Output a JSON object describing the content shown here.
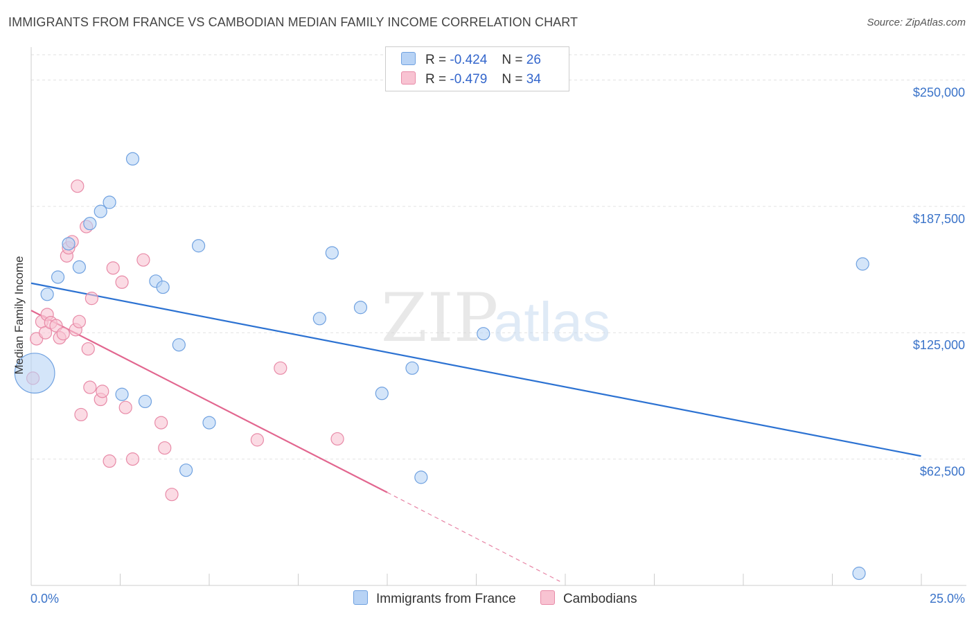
{
  "title": "IMMIGRANTS FROM FRANCE VS CAMBODIAN MEDIAN FAMILY INCOME CORRELATION CHART",
  "source": "Source: ZipAtlas.com",
  "watermark": {
    "zip": "ZIP",
    "atlas": "atlas"
  },
  "legend": {
    "rows": [
      {
        "r_label": "R =",
        "r_value": "-0.424",
        "n_label": "N =",
        "n_value": "26"
      },
      {
        "r_label": "R =",
        "r_value": "-0.479",
        "n_label": "N =",
        "n_value": "34"
      }
    ]
  },
  "colors": {
    "blue_fill": "#b8d3f5",
    "blue_stroke": "#6fa1e0",
    "blue_line": "#2c72d2",
    "pink_fill": "#f8c3d2",
    "pink_stroke": "#e88aa7",
    "pink_line": "#e2668f",
    "axis_label": "#3a73c9"
  },
  "chart_data": {
    "type": "scatter",
    "title": "IMMIGRANTS FROM FRANCE VS CAMBODIAN MEDIAN FAMILY INCOME CORRELATION CHART",
    "xlabel": "",
    "ylabel": "Median Family Income",
    "xlim": [
      0,
      25
    ],
    "ylim": [
      0,
      262500
    ],
    "x_tick_labels": [
      "0.0%",
      "25.0%"
    ],
    "y_ticks": [
      62500,
      125000,
      187500,
      250000
    ],
    "y_tick_labels": [
      "$62,500",
      "$125,000",
      "$187,500",
      "$250,000"
    ],
    "grid": true,
    "legend_position": "top-center",
    "series": [
      {
        "name": "Immigrants from France",
        "color": "#6fa1e0",
        "r": -0.424,
        "n": 26,
        "trend": {
          "x": [
            0,
            24.99
          ],
          "y": [
            149500,
            64000
          ]
        },
        "points": [
          {
            "x": 0.1,
            "y": 105000,
            "size": 3.2
          },
          {
            "x": 0.45,
            "y": 144000
          },
          {
            "x": 0.75,
            "y": 152500
          },
          {
            "x": 1.05,
            "y": 169000
          },
          {
            "x": 1.35,
            "y": 157500
          },
          {
            "x": 1.65,
            "y": 179000
          },
          {
            "x": 1.95,
            "y": 185000
          },
          {
            "x": 2.2,
            "y": 189500
          },
          {
            "x": 2.55,
            "y": 94500
          },
          {
            "x": 2.85,
            "y": 211000
          },
          {
            "x": 3.2,
            "y": 91000
          },
          {
            "x": 3.5,
            "y": 150500
          },
          {
            "x": 3.7,
            "y": 147500
          },
          {
            "x": 4.15,
            "y": 119000
          },
          {
            "x": 4.7,
            "y": 168000
          },
          {
            "x": 5.0,
            "y": 80500
          },
          {
            "x": 4.35,
            "y": 57000
          },
          {
            "x": 8.1,
            "y": 132000
          },
          {
            "x": 8.45,
            "y": 164500
          },
          {
            "x": 9.25,
            "y": 137500
          },
          {
            "x": 9.85,
            "y": 95000
          },
          {
            "x": 10.7,
            "y": 107500
          },
          {
            "x": 10.95,
            "y": 53500
          },
          {
            "x": 12.7,
            "y": 124500
          },
          {
            "x": 23.25,
            "y": 6000
          },
          {
            "x": 23.35,
            "y": 159000
          }
        ]
      },
      {
        "name": "Cambodians",
        "color": "#e88aa7",
        "r": -0.479,
        "n": 34,
        "trend": {
          "x": [
            0,
            10.0
          ],
          "y": [
            136000,
            46000
          ]
        },
        "trend_dashed": {
          "x": [
            10.0,
            14.85
          ],
          "y": [
            46000,
            2000
          ]
        },
        "points": [
          {
            "x": 0.05,
            "y": 102500
          },
          {
            "x": 0.15,
            "y": 122000
          },
          {
            "x": 0.3,
            "y": 130500
          },
          {
            "x": 0.4,
            "y": 125000
          },
          {
            "x": 0.45,
            "y": 134000
          },
          {
            "x": 0.55,
            "y": 130000
          },
          {
            "x": 0.7,
            "y": 128500
          },
          {
            "x": 0.8,
            "y": 122500
          },
          {
            "x": 0.9,
            "y": 124500
          },
          {
            "x": 1.0,
            "y": 163000
          },
          {
            "x": 1.05,
            "y": 167000
          },
          {
            "x": 1.15,
            "y": 170000
          },
          {
            "x": 1.25,
            "y": 126500
          },
          {
            "x": 1.3,
            "y": 197500
          },
          {
            "x": 1.35,
            "y": 130500
          },
          {
            "x": 1.4,
            "y": 84500
          },
          {
            "x": 1.55,
            "y": 177500
          },
          {
            "x": 1.6,
            "y": 117000
          },
          {
            "x": 1.65,
            "y": 98000
          },
          {
            "x": 1.7,
            "y": 142000
          },
          {
            "x": 1.95,
            "y": 92000
          },
          {
            "x": 2.0,
            "y": 96000
          },
          {
            "x": 2.2,
            "y": 61500
          },
          {
            "x": 2.3,
            "y": 157000
          },
          {
            "x": 2.55,
            "y": 150000
          },
          {
            "x": 2.65,
            "y": 88000
          },
          {
            "x": 2.85,
            "y": 62500
          },
          {
            "x": 3.15,
            "y": 161000
          },
          {
            "x": 3.65,
            "y": 80500
          },
          {
            "x": 3.75,
            "y": 68000
          },
          {
            "x": 3.95,
            "y": 45000
          },
          {
            "x": 6.35,
            "y": 72000
          },
          {
            "x": 7.0,
            "y": 107500
          },
          {
            "x": 8.6,
            "y": 72500
          }
        ]
      }
    ]
  },
  "bottom_legend": [
    "Immigrants from France",
    "Cambodians"
  ]
}
